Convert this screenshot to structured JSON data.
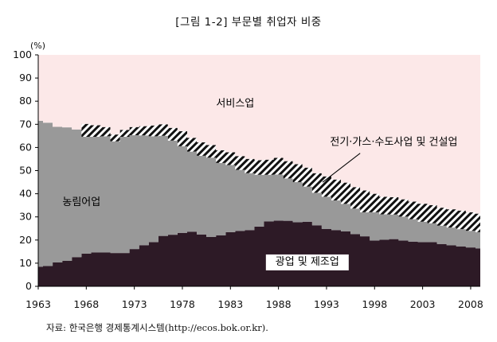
{
  "title": "[그림 1-2] 부문별 취업자 비중",
  "source": "자료: 한국은행 경제통계시스템(http://ecos.bok.or.kr).",
  "chart_data": {
    "type": "area",
    "title": "[그림 1-2] 부문별 취업자 비중",
    "xlabel": "",
    "ylabel": "(%)",
    "ylim": [
      0,
      100
    ],
    "xlim": [
      1963,
      2009
    ],
    "yticks": [
      0,
      10,
      20,
      30,
      40,
      50,
      60,
      70,
      80,
      90,
      100
    ],
    "xticks": [
      1963,
      1968,
      1973,
      1978,
      1983,
      1988,
      1993,
      1998,
      2003,
      2008
    ],
    "grid": false,
    "stacked": true,
    "x": [
      1963,
      1964,
      1965,
      1966,
      1967,
      1968,
      1969,
      1970,
      1971,
      1972,
      1973,
      1974,
      1975,
      1976,
      1977,
      1978,
      1979,
      1980,
      1981,
      1982,
      1983,
      1984,
      1985,
      1986,
      1987,
      1988,
      1989,
      1990,
      1991,
      1992,
      1993,
      1994,
      1995,
      1996,
      1997,
      1998,
      1999,
      2000,
      2001,
      2002,
      2003,
      2004,
      2005,
      2006,
      2007,
      2008,
      2009
    ],
    "series": [
      {
        "name": "광업 및 제조업",
        "color": "#2d1a26",
        "values": [
          8.5,
          8.8,
          10.3,
          11.0,
          12.6,
          14.1,
          14.6,
          14.6,
          14.4,
          14.4,
          16.1,
          17.8,
          19.1,
          21.8,
          22.3,
          23.1,
          23.6,
          22.4,
          21.4,
          22.0,
          23.4,
          24.0,
          24.3,
          25.8,
          28.0,
          28.4,
          28.3,
          27.7,
          27.9,
          26.4,
          24.8,
          24.3,
          23.7,
          22.6,
          21.6,
          19.8,
          20.1,
          20.4,
          19.8,
          19.3,
          19.1,
          19.1,
          18.3,
          17.7,
          17.3,
          16.8,
          16.4
        ]
      },
      {
        "name": "농림어업",
        "color": "#999999",
        "values": [
          63.0,
          61.9,
          58.6,
          57.7,
          55.2,
          50.5,
          50.0,
          50.2,
          48.2,
          50.2,
          49.2,
          47.4,
          45.7,
          43.2,
          40.7,
          37.4,
          34.6,
          34.0,
          34.2,
          31.3,
          29.0,
          26.3,
          24.6,
          22.4,
          20.2,
          19.9,
          18.3,
          17.3,
          15.2,
          14.0,
          13.9,
          12.8,
          11.9,
          11.0,
          10.4,
          12.2,
          11.0,
          10.6,
          10.3,
          9.7,
          8.8,
          8.1,
          7.9,
          7.7,
          7.4,
          7.2,
          7.0
        ]
      },
      {
        "name": "전기·가스·수도사업 및 건설업",
        "color": "#ffffff",
        "pattern": "hatch",
        "values": [
          0.0,
          0.0,
          0.0,
          0.0,
          0.0,
          5.6,
          5.0,
          4.0,
          3.0,
          3.0,
          3.5,
          4.0,
          4.7,
          5.0,
          5.5,
          6.5,
          6.0,
          5.8,
          5.5,
          5.5,
          5.5,
          6.0,
          6.2,
          6.3,
          6.5,
          7.2,
          7.5,
          7.8,
          8.2,
          8.5,
          8.8,
          9.0,
          9.2,
          9.3,
          9.4,
          8.0,
          7.6,
          7.5,
          7.5,
          7.6,
          7.8,
          7.9,
          7.8,
          7.9,
          8.0,
          8.0,
          8.0
        ]
      },
      {
        "name": "서비스업",
        "color": "#fce8e8",
        "values": [
          28.5,
          29.3,
          31.1,
          31.3,
          32.2,
          29.8,
          30.4,
          31.2,
          34.4,
          32.4,
          31.2,
          30.8,
          30.5,
          30.0,
          31.5,
          33.0,
          35.8,
          37.8,
          38.9,
          41.2,
          42.1,
          43.7,
          44.9,
          45.5,
          45.3,
          44.5,
          45.9,
          47.2,
          48.7,
          51.1,
          52.5,
          53.9,
          55.2,
          57.1,
          58.6,
          60.0,
          61.3,
          61.5,
          62.4,
          63.4,
          64.3,
          64.9,
          66.0,
          66.7,
          67.3,
          68.0,
          68.6
        ]
      }
    ],
    "annotations": [
      "서비스업",
      "전기·가스·수도사업 및 건설업",
      "농림어업",
      "광업 및 제조업"
    ]
  }
}
